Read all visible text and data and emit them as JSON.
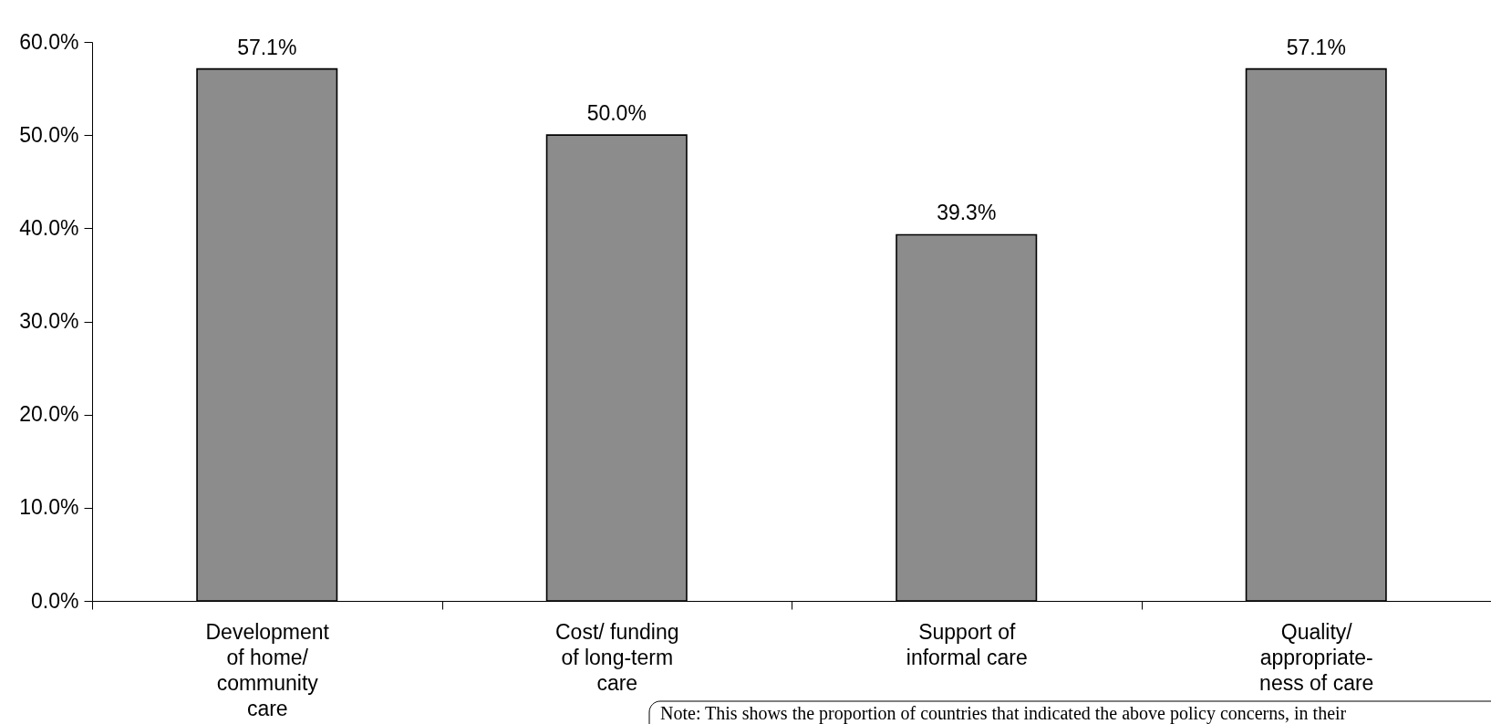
{
  "chart_data": {
    "type": "bar",
    "categories": [
      "Development of home/ community care",
      "Cost/ funding of long-term care",
      "Support of informal care",
      "Quality/ appropriate-ness of care"
    ],
    "values": [
      57.1,
      50.0,
      39.3,
      57.1
    ],
    "color": "#8c8c8c",
    "value_labels": [
      "57.1%",
      "50.0%",
      "39.3%",
      "57.1%"
    ],
    "ylim": [
      0,
      60
    ],
    "yticks": [
      {
        "value": 0,
        "label": "0.0%"
      },
      {
        "value": 10,
        "label": "10.0%"
      },
      {
        "value": 20,
        "label": "20.0%"
      },
      {
        "value": 30,
        "label": "30.0%"
      },
      {
        "value": 40,
        "label": "40.0%"
      },
      {
        "value": 50,
        "label": "50.0%"
      },
      {
        "value": 60,
        "label": "60.0%"
      }
    ],
    "annotations": [
      "Note: This shows the proportion of countries that indicated the above policy concerns, in their"
    ]
  }
}
